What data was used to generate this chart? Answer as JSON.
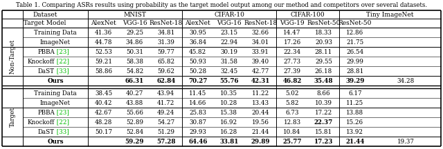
{
  "title": "Table 1. Comparing ASRs results using probability as the target model output among our method and competitors over several datasets.",
  "rows_nontarget": [
    [
      "Training Data",
      "41.36",
      "29.25",
      "34.81",
      "30.95",
      "23.15",
      "32.66",
      "14.47",
      "18.33",
      "12.86"
    ],
    [
      "ImageNet",
      "44.78",
      "34.86",
      "31.39",
      "36.84",
      "22.94",
      "34.01",
      "17.26",
      "20.93",
      "21.75"
    ],
    [
      "PBBA",
      "[23]",
      "52.53",
      "50.31",
      "59.77",
      "45.82",
      "30.19",
      "33.91",
      "22.34",
      "28.11",
      "26.54"
    ],
    [
      "Knockoff",
      "[22]",
      "59.21",
      "58.38",
      "65.82",
      "50.93",
      "31.58",
      "39.40",
      "27.73",
      "29.55",
      "29.99"
    ],
    [
      "DaST",
      "[33]",
      "58.86",
      "54.82",
      "59.62",
      "50.28",
      "32.45",
      "42.77",
      "27.39",
      "26.18",
      "28.81"
    ],
    [
      "Ours",
      "",
      "66.31",
      "62.84",
      "70.27",
      "55.76",
      "42.31",
      "46.82",
      "35.48",
      "39.29",
      "34.28"
    ]
  ],
  "rows_target": [
    [
      "Training Data",
      "38.45",
      "40.27",
      "43.94",
      "11.45",
      "10.35",
      "11.22",
      "5.02",
      "8.66",
      "6.17"
    ],
    [
      "ImageNet",
      "40.42",
      "43.88",
      "41.72",
      "14.66",
      "10.28",
      "13.43",
      "5.82",
      "10.39",
      "11.25"
    ],
    [
      "PBBA",
      "[23]",
      "42.67",
      "55.66",
      "49.24",
      "25.83",
      "15.38",
      "20.44",
      "6.73",
      "17.22",
      "13.88"
    ],
    [
      "Knockoff",
      "[22]",
      "48.28",
      "52.89",
      "54.27",
      "30.87",
      "16.92",
      "19.56",
      "12.83",
      "22.37",
      "15.26"
    ],
    [
      "DaST",
      "[33]",
      "50.17",
      "52.84",
      "51.29",
      "29.93",
      "16.28",
      "21.44",
      "10.84",
      "15.81",
      "13.92"
    ],
    [
      "Ours",
      "",
      "59.29",
      "57.28",
      "64.46",
      "33.81",
      "29.89",
      "25.77",
      "17.23",
      "21.44",
      "19.37"
    ]
  ],
  "col_headers": [
    "AlexNet",
    "VGG-16",
    "ResNet-18",
    "AlexNet",
    "VGG-16",
    "ResNet-18",
    "VGG-19",
    "ResNet-50",
    "ResNet-50"
  ],
  "dataset_headers": [
    "MNIST",
    "CIFAR-10",
    "CIFAR-100",
    "Tiny ImageNet"
  ],
  "dataset_spans": [
    [
      0,
      2
    ],
    [
      3,
      5
    ],
    [
      6,
      7
    ],
    [
      8,
      8
    ]
  ],
  "ref_color": "#00bb00",
  "bg_color": "#ffffff",
  "border_color": "#000000",
  "title_fs": 6.2,
  "header_fs": 6.5,
  "data_fs": 6.3,
  "bold_nt_ours": [
    0,
    1,
    2,
    3,
    4,
    5,
    6,
    7,
    8
  ],
  "bold_t_ours": [
    0,
    1,
    2,
    3,
    4,
    5,
    6,
    7,
    8
  ],
  "bold_t_knockoff_col8": true
}
